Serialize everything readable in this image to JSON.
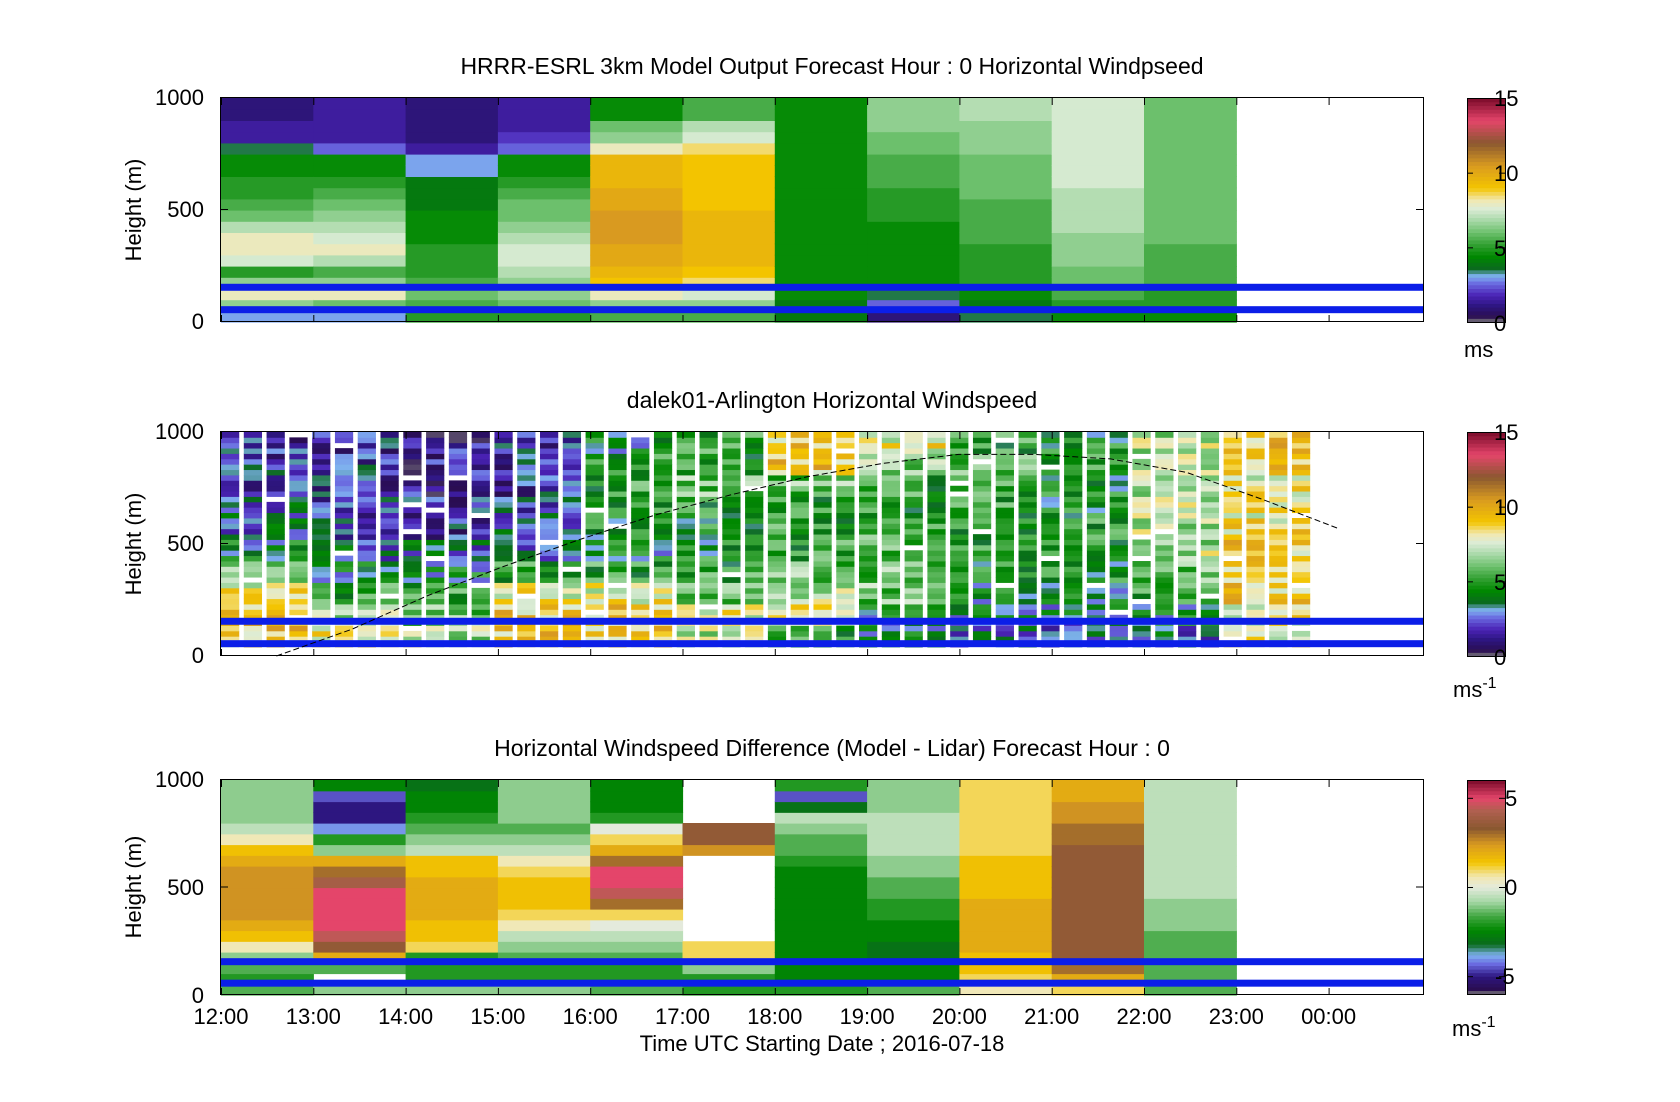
{
  "figure": {
    "xlabel": "Time UTC  Starting Date ; 2016-07-18",
    "x_ticks": [
      "12:00",
      "13:00",
      "14:00",
      "15:00",
      "16:00",
      "17:00",
      "18:00",
      "19:00",
      "20:00",
      "21:00",
      "22:00",
      "23:00",
      "00:00"
    ]
  },
  "chart_data": [
    {
      "type": "heatmap",
      "title": "HRRR-ESRL 3km Model Output   Forecast Hour : 0 Horizontal Windpseed",
      "ylabel": "Height (m)",
      "y_ticks": [
        "1000",
        "500",
        "0"
      ],
      "ylim": [
        0,
        1000
      ],
      "colorbar": {
        "min": 0,
        "max": 15,
        "ticks": [
          "15",
          "10",
          "5",
          "0"
        ],
        "unit": "ms",
        "unit_sup": ""
      },
      "time_columns": [
        "12:00",
        "13:00",
        "14:00",
        "15:00",
        "16:00",
        "17:00",
        "18:00",
        "19:00",
        "20:00",
        "21:00",
        "22:00"
      ],
      "height_levels": [
        25,
        75,
        125,
        175,
        225,
        275,
        325,
        375,
        425,
        475,
        525,
        575,
        625,
        675,
        725,
        775,
        825,
        875,
        925,
        975
      ],
      "values_by_column": [
        [
          3,
          6.5,
          8,
          6.5,
          5,
          7.5,
          8,
          8,
          7,
          6,
          5.5,
          5,
          5,
          4.5,
          4.5,
          3.5,
          1.5,
          1.5,
          1,
          1
        ],
        [
          3,
          6,
          8,
          6.5,
          5.5,
          7,
          8,
          7.5,
          7,
          6.5,
          6,
          5.5,
          5,
          4.5,
          4.5,
          2.5,
          1.5,
          1.5,
          1.5,
          1.5
        ],
        [
          5,
          5.5,
          6,
          5.5,
          5,
          5,
          5,
          4.5,
          4.5,
          4.5,
          4,
          4,
          4,
          3,
          3,
          1.5,
          1,
          1,
          1,
          1
        ],
        [
          5,
          6,
          6.5,
          6.5,
          7,
          7.5,
          7.5,
          7,
          6.5,
          6,
          6,
          5.5,
          5,
          4.5,
          4.5,
          2.5,
          2,
          1.5,
          1.5,
          1.5
        ],
        [
          5.5,
          6.5,
          8,
          9,
          9.5,
          10,
          10,
          10.5,
          10.5,
          10.5,
          10,
          10,
          9.5,
          9.5,
          9.5,
          8,
          6.5,
          6,
          4.5,
          4.5
        ],
        [
          5.5,
          6.5,
          7.5,
          8.5,
          9,
          9.5,
          9.5,
          9.5,
          9.5,
          9.5,
          9,
          9,
          9,
          9,
          9,
          8.5,
          7.5,
          7,
          5.5,
          5.5
        ],
        [
          4,
          4,
          4.5,
          4.5,
          4.5,
          4.5,
          4.5,
          4.5,
          4.5,
          4.5,
          4.5,
          4.5,
          4.5,
          4.5,
          4.5,
          4.5,
          4.5,
          4.5,
          4.5,
          4.5
        ],
        [
          1,
          2.5,
          3.5,
          4.5,
          4.5,
          4.5,
          4.5,
          4.5,
          4.5,
          5,
          5,
          5,
          5.5,
          5.5,
          5.5,
          6,
          6,
          6.5,
          6.5,
          6.5
        ],
        [
          3.5,
          4,
          4.5,
          5,
          5,
          5,
          5,
          5.5,
          5.5,
          5.5,
          5.5,
          6,
          6,
          6,
          6,
          6.5,
          6.5,
          6.5,
          7,
          7
        ],
        [
          4.5,
          5,
          5.5,
          6,
          6,
          6.5,
          6.5,
          6.5,
          7,
          7,
          7,
          7,
          7.5,
          7.5,
          7.5,
          7.5,
          7.5,
          7.5,
          7.5,
          7.5
        ],
        [
          4.5,
          5,
          5,
          5.5,
          5.5,
          5.5,
          5.5,
          6,
          6,
          6,
          6,
          6,
          6,
          6,
          6,
          6,
          6,
          6,
          6,
          6
        ]
      ],
      "reference_lines_m": [
        55,
        155
      ]
    },
    {
      "type": "heatmap",
      "title": "dalek01-Arlington  Horizontal Windspeed",
      "ylabel": "Height (m)",
      "y_ticks": [
        "1000",
        "500",
        "0"
      ],
      "ylim": [
        0,
        1000
      ],
      "colorbar": {
        "min": 0,
        "max": 15,
        "ticks": [
          "15",
          "10",
          "5",
          "0"
        ],
        "unit": "ms",
        "unit_sup": "-1"
      },
      "time_range": [
        "12:00",
        "23:50"
      ],
      "column_count": 48,
      "height_levels": [
        25,
        75,
        125,
        175,
        225,
        275,
        325,
        375,
        425,
        475,
        525,
        575,
        625,
        675,
        725,
        775,
        825,
        875,
        925,
        975
      ],
      "profile_hourly": [
        [
          9,
          9,
          8,
          6,
          4,
          3,
          3,
          2,
          2,
          2
        ],
        [
          8,
          7,
          5,
          4,
          3,
          2.5,
          2,
          2,
          2,
          2
        ],
        [
          7,
          6,
          5,
          4,
          3,
          2,
          2,
          1.5,
          1.5,
          1.5
        ],
        [
          9,
          9,
          8,
          5,
          3,
          3,
          2.5,
          2,
          2,
          2
        ],
        [
          9,
          9,
          8,
          5,
          4,
          4.5,
          5,
          5,
          5,
          4
        ],
        [
          7,
          8,
          6,
          5,
          4.5,
          4.5,
          5,
          6,
          5,
          5
        ],
        [
          5,
          8,
          7,
          6,
          5,
          5,
          5,
          6,
          9,
          9
        ],
        [
          4,
          4,
          6,
          6,
          6,
          5.5,
          5,
          5,
          6.5,
          8
        ],
        [
          3,
          3.5,
          4,
          4.5,
          5,
          5,
          5,
          5,
          5.5,
          5
        ],
        [
          2.5,
          3.5,
          4,
          4.5,
          5,
          5,
          4.5,
          4.5,
          5,
          4.5
        ],
        [
          3,
          4,
          5,
          6,
          7,
          7,
          7,
          7,
          7,
          7
        ],
        [
          8,
          8,
          9,
          9,
          9,
          8.5,
          8,
          8,
          9,
          9
        ]
      ],
      "boundary_layer_height_hourly": [
        0,
        120,
        270,
        400,
        520,
        630,
        720,
        800,
        860,
        900,
        900,
        880,
        820,
        700,
        570
      ],
      "reference_lines_m": [
        55,
        155
      ]
    },
    {
      "type": "heatmap",
      "title": "Horizontal Windspeed Difference (Model - Lidar) Forecast Hour : 0",
      "ylabel": "Height (m)",
      "y_ticks": [
        "1000",
        "500",
        "0"
      ],
      "ylim": [
        0,
        1000
      ],
      "colorbar": {
        "min": -6,
        "max": 6,
        "ticks": [
          "5",
          "0",
          "-5"
        ],
        "unit": "ms",
        "unit_sup": "-1"
      },
      "time_columns": [
        "12:00",
        "13:00",
        "14:00",
        "15:00",
        "16:00",
        "17:00",
        "18:00",
        "19:00",
        "20:00",
        "21:00",
        "22:00"
      ],
      "height_levels": [
        25,
        75,
        125,
        175,
        225,
        275,
        325,
        375,
        425,
        475,
        525,
        575,
        625,
        675,
        725,
        775,
        825,
        875,
        925,
        975
      ],
      "values_by_column": [
        [
          -1.5,
          -2,
          -1.5,
          -1,
          0.5,
          1.5,
          2,
          2.5,
          2.5,
          2.5,
          2.5,
          2.5,
          2,
          1.5,
          0.5,
          -0.5,
          -1,
          -1,
          -1,
          -1
        ],
        [
          -1,
          null,
          -1.5,
          2,
          3.5,
          4.5,
          5,
          5,
          5,
          5,
          4,
          3,
          2,
          -1,
          -2,
          -4,
          -5,
          -5,
          -4.5,
          -2.5
        ],
        [
          -1,
          -2,
          -2,
          -2,
          1,
          1.5,
          1.5,
          2,
          2,
          2,
          2,
          1.5,
          1.5,
          -0.5,
          -1,
          -1.5,
          -2,
          -2.5,
          -2.5,
          -3
        ],
        [
          -1,
          -2,
          -2,
          -1.5,
          -1,
          -0.5,
          0.5,
          1,
          1.5,
          1.5,
          1.5,
          1,
          0.5,
          -0.5,
          -1,
          -1.5,
          -1,
          -1,
          -1,
          -1
        ],
        [
          -1.5,
          -2,
          -2,
          -1.5,
          -1,
          -0.5,
          0,
          1,
          3,
          4.5,
          5,
          5,
          3,
          2,
          1,
          0,
          -2,
          -2.5,
          -2.5,
          -2.5
        ],
        [
          -2,
          -2,
          -1,
          1,
          1,
          null,
          null,
          null,
          null,
          null,
          null,
          null,
          null,
          2.5,
          3.5,
          3.5,
          null,
          null,
          null,
          null
        ],
        [
          -2,
          -2.5,
          -2.5,
          -2.5,
          -2.5,
          -2.5,
          -2.5,
          -2.5,
          -2.5,
          -2.5,
          -2.5,
          -2.5,
          -2,
          -1.5,
          -1.5,
          -1,
          -0.5,
          -3,
          -4.5,
          -2
        ],
        [
          -1.5,
          -2.5,
          -2.5,
          -3,
          -3,
          -2.5,
          -2.5,
          -2,
          -2,
          -1.5,
          -1.5,
          -1,
          -1,
          -0.5,
          -0.5,
          -0.5,
          -0.5,
          -1,
          -1,
          -1
        ],
        [
          0.5,
          1,
          1.5,
          1.5,
          2,
          2,
          2,
          2,
          2,
          1.5,
          1.5,
          1.5,
          1.5,
          1,
          1,
          1,
          1,
          1,
          1,
          1
        ],
        [
          1,
          2,
          3,
          3.5,
          3.5,
          3.5,
          3.5,
          3.5,
          3.5,
          3.5,
          3.5,
          3.5,
          3.5,
          3.5,
          3,
          3,
          2.5,
          2.5,
          2,
          2
        ],
        [
          -1.5,
          -1.5,
          -1.5,
          -1.5,
          -1.5,
          -1.5,
          -1,
          -1,
          -1,
          -0.5,
          -0.5,
          -0.5,
          -0.5,
          -0.5,
          -0.5,
          -0.5,
          -0.5,
          -0.5,
          -0.5,
          -0.5
        ]
      ],
      "reference_lines_m": [
        55,
        155
      ]
    }
  ],
  "colors": {
    "reference_line": "#0b1ee8",
    "frame": "#000000",
    "nodata": "#ffffff"
  },
  "colormap_speed": [
    [
      0,
      "#7f7f7f"
    ],
    [
      0.4,
      "#2a0d52"
    ],
    [
      1.1,
      "#2d1680"
    ],
    [
      1.8,
      "#4a22b5"
    ],
    [
      2.6,
      "#6a6ae0"
    ],
    [
      3.1,
      "#7fb2f0"
    ],
    [
      3.6,
      "#0a6a1e"
    ],
    [
      4.4,
      "#008800"
    ],
    [
      5.2,
      "#33a033"
    ],
    [
      6.0,
      "#6cc06c"
    ],
    [
      6.8,
      "#a6d8a6"
    ],
    [
      7.6,
      "#dcecd6"
    ],
    [
      8.2,
      "#f2e8b0"
    ],
    [
      9.0,
      "#f3c400"
    ],
    [
      10.5,
      "#d99a20"
    ],
    [
      12.0,
      "#8a5830"
    ],
    [
      13.5,
      "#e4456a"
    ],
    [
      15.0,
      "#7a0a2a"
    ]
  ],
  "colormap_diff": [
    [
      -6,
      "#7f7f7f"
    ],
    [
      -5.7,
      "#2a0d52"
    ],
    [
      -5,
      "#2d1680"
    ],
    [
      -4.3,
      "#6a6ae0"
    ],
    [
      -3.8,
      "#7fb2f0"
    ],
    [
      -3.2,
      "#0a6a1e"
    ],
    [
      -2.4,
      "#008800"
    ],
    [
      -1.6,
      "#44a844"
    ],
    [
      -0.8,
      "#a6d8a6"
    ],
    [
      0,
      "#e4eadc"
    ],
    [
      0.6,
      "#f2e8b0"
    ],
    [
      1.4,
      "#f3c400"
    ],
    [
      2.4,
      "#d99a20"
    ],
    [
      3.3,
      "#8a5830"
    ],
    [
      4.3,
      "#b06050"
    ],
    [
      5.0,
      "#e4456a"
    ],
    [
      6.0,
      "#7a0a2a"
    ]
  ]
}
